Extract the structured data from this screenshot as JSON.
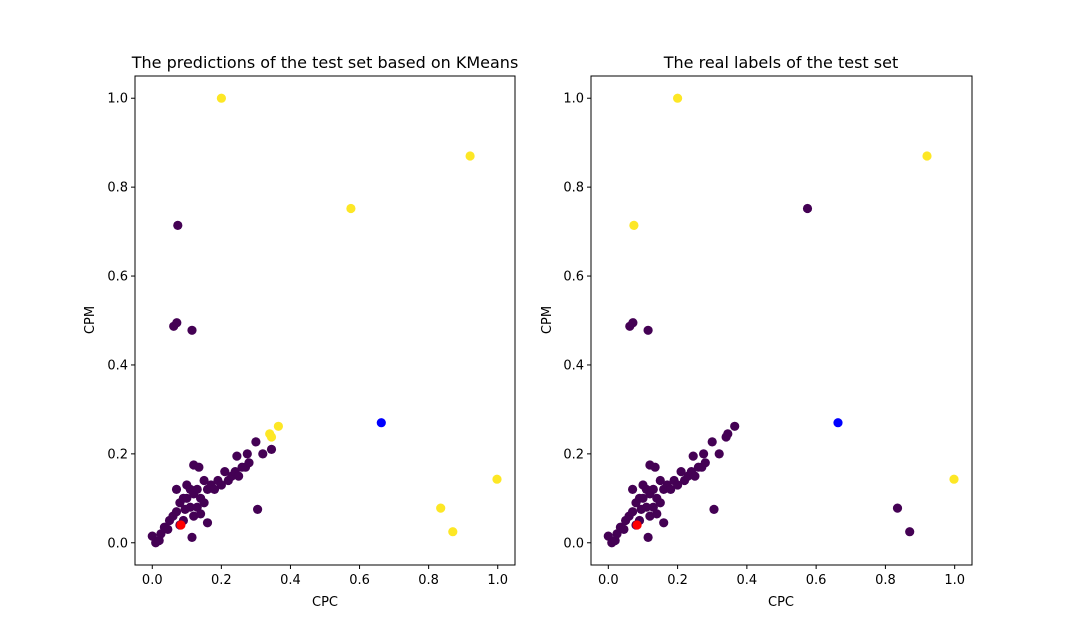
{
  "colors": {
    "cluster_main": "#440154",
    "cluster_outlier": "#fde725",
    "special_point": "#0000ff",
    "centroid": "#ff0000"
  },
  "chart_data": [
    {
      "type": "scatter",
      "title": "The predictions of the test set based on KMeans",
      "xlabel": "CPC",
      "ylabel": "CPM",
      "xlim": [
        -0.05,
        1.05
      ],
      "ylim": [
        -0.05,
        1.05
      ],
      "xticks": [
        "0.0",
        "0.2",
        "0.4",
        "0.6",
        "0.8",
        "1.0"
      ],
      "yticks": [
        "0.0",
        "0.2",
        "0.4",
        "0.6",
        "0.8",
        "1.0"
      ],
      "grid": false,
      "series": [
        {
          "color_key": "cluster_main",
          "points": [
            [
              0.074,
              0.714
            ],
            [
              0.062,
              0.487
            ],
            [
              0.071,
              0.495
            ],
            [
              0.115,
              0.478
            ],
            [
              0.305,
              0.075
            ],
            [
              0.245,
              0.195
            ],
            [
              0.275,
              0.2
            ],
            [
              0.3,
              0.227
            ],
            [
              0.32,
              0.2
            ],
            [
              0.345,
              0.21
            ],
            [
              0.12,
              0.175
            ],
            [
              0.135,
              0.17
            ],
            [
              0.0,
              0.015
            ],
            [
              0.01,
              0.0
            ],
            [
              0.02,
              0.005
            ],
            [
              0.025,
              0.02
            ],
            [
              0.035,
              0.035
            ],
            [
              0.045,
              0.03
            ],
            [
              0.05,
              0.05
            ],
            [
              0.06,
              0.06
            ],
            [
              0.07,
              0.07
            ],
            [
              0.07,
              0.12
            ],
            [
              0.08,
              0.09
            ],
            [
              0.09,
              0.1
            ],
            [
              0.1,
              0.1
            ],
            [
              0.1,
              0.13
            ],
            [
              0.11,
              0.12
            ],
            [
              0.12,
              0.11
            ],
            [
              0.13,
              0.12
            ],
            [
              0.14,
              0.1
            ],
            [
              0.15,
              0.14
            ],
            [
              0.16,
              0.12
            ],
            [
              0.17,
              0.13
            ],
            [
              0.18,
              0.12
            ],
            [
              0.19,
              0.14
            ],
            [
              0.2,
              0.13
            ],
            [
              0.21,
              0.16
            ],
            [
              0.22,
              0.14
            ],
            [
              0.23,
              0.15
            ],
            [
              0.24,
              0.16
            ],
            [
              0.25,
              0.15
            ],
            [
              0.26,
              0.17
            ],
            [
              0.27,
              0.17
            ],
            [
              0.28,
              0.18
            ],
            [
              0.16,
              0.045
            ],
            [
              0.115,
              0.012
            ],
            [
              0.09,
              0.05
            ],
            [
              0.11,
              0.08
            ],
            [
              0.13,
              0.08
            ],
            [
              0.15,
              0.09
            ],
            [
              0.12,
              0.06
            ],
            [
              0.08,
              0.04
            ],
            [
              0.095,
              0.075
            ],
            [
              0.14,
              0.065
            ]
          ]
        },
        {
          "color_key": "cluster_outlier",
          "points": [
            [
              0.2,
              1.0
            ],
            [
              0.92,
              0.87
            ],
            [
              0.575,
              0.752
            ],
            [
              0.365,
              0.262
            ],
            [
              0.34,
              0.245
            ],
            [
              0.345,
              0.238
            ],
            [
              0.998,
              0.143
            ],
            [
              0.835,
              0.078
            ],
            [
              0.87,
              0.025
            ]
          ]
        },
        {
          "color_key": "special_point",
          "points": [
            [
              0.663,
              0.27
            ]
          ]
        },
        {
          "color_key": "centroid",
          "points": [
            [
              0.083,
              0.04
            ]
          ]
        }
      ]
    },
    {
      "type": "scatter",
      "title": "The real labels of the test set",
      "xlabel": "CPC",
      "ylabel": "CPM",
      "xlim": [
        -0.05,
        1.05
      ],
      "ylim": [
        -0.05,
        1.05
      ],
      "xticks": [
        "0.0",
        "0.2",
        "0.4",
        "0.6",
        "0.8",
        "1.0"
      ],
      "yticks": [
        "0.0",
        "0.2",
        "0.4",
        "0.6",
        "0.8",
        "1.0"
      ],
      "grid": false,
      "series": [
        {
          "color_key": "cluster_main",
          "points": [
            [
              0.062,
              0.487
            ],
            [
              0.071,
              0.495
            ],
            [
              0.115,
              0.478
            ],
            [
              0.575,
              0.752
            ],
            [
              0.305,
              0.075
            ],
            [
              0.835,
              0.078
            ],
            [
              0.87,
              0.025
            ],
            [
              0.365,
              0.262
            ],
            [
              0.345,
              0.245
            ],
            [
              0.34,
              0.238
            ],
            [
              0.3,
              0.227
            ],
            [
              0.32,
              0.2
            ],
            [
              0.275,
              0.2
            ],
            [
              0.245,
              0.195
            ],
            [
              0.12,
              0.175
            ],
            [
              0.135,
              0.17
            ],
            [
              0.0,
              0.015
            ],
            [
              0.01,
              0.0
            ],
            [
              0.02,
              0.005
            ],
            [
              0.025,
              0.02
            ],
            [
              0.035,
              0.035
            ],
            [
              0.045,
              0.03
            ],
            [
              0.05,
              0.05
            ],
            [
              0.06,
              0.06
            ],
            [
              0.07,
              0.07
            ],
            [
              0.07,
              0.12
            ],
            [
              0.08,
              0.09
            ],
            [
              0.09,
              0.1
            ],
            [
              0.1,
              0.1
            ],
            [
              0.1,
              0.13
            ],
            [
              0.11,
              0.12
            ],
            [
              0.12,
              0.11
            ],
            [
              0.13,
              0.12
            ],
            [
              0.14,
              0.1
            ],
            [
              0.15,
              0.14
            ],
            [
              0.16,
              0.12
            ],
            [
              0.17,
              0.13
            ],
            [
              0.18,
              0.12
            ],
            [
              0.19,
              0.14
            ],
            [
              0.2,
              0.13
            ],
            [
              0.21,
              0.16
            ],
            [
              0.22,
              0.14
            ],
            [
              0.23,
              0.15
            ],
            [
              0.24,
              0.16
            ],
            [
              0.25,
              0.15
            ],
            [
              0.26,
              0.17
            ],
            [
              0.27,
              0.17
            ],
            [
              0.28,
              0.18
            ],
            [
              0.16,
              0.045
            ],
            [
              0.115,
              0.012
            ],
            [
              0.09,
              0.05
            ],
            [
              0.11,
              0.08
            ],
            [
              0.13,
              0.08
            ],
            [
              0.15,
              0.09
            ],
            [
              0.12,
              0.06
            ],
            [
              0.08,
              0.04
            ],
            [
              0.095,
              0.075
            ],
            [
              0.14,
              0.065
            ]
          ]
        },
        {
          "color_key": "cluster_outlier",
          "points": [
            [
              0.2,
              1.0
            ],
            [
              0.92,
              0.87
            ],
            [
              0.074,
              0.714
            ],
            [
              0.998,
              0.143
            ]
          ]
        },
        {
          "color_key": "special_point",
          "points": [
            [
              0.663,
              0.27
            ]
          ]
        },
        {
          "color_key": "centroid",
          "points": [
            [
              0.083,
              0.04
            ]
          ]
        }
      ]
    }
  ]
}
